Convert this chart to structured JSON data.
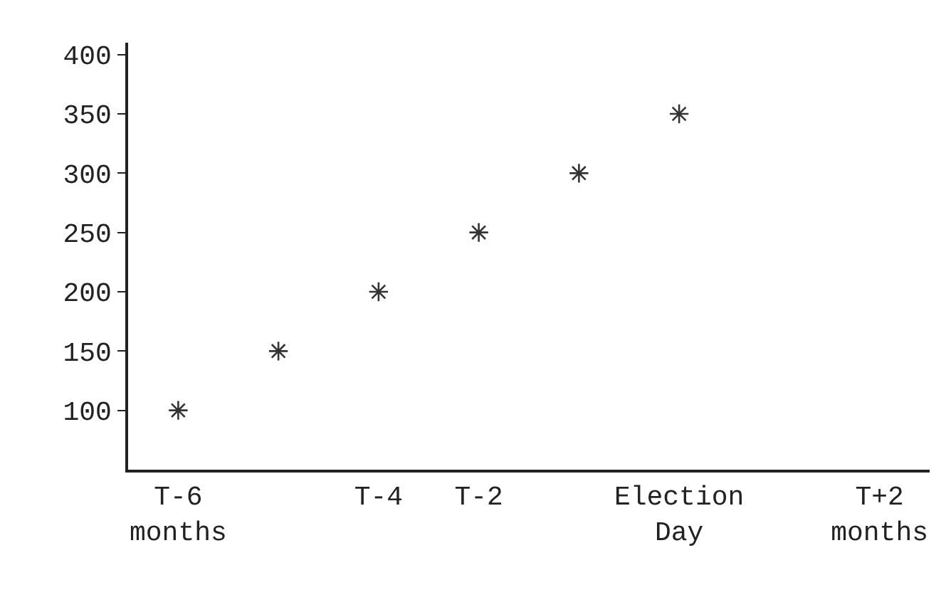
{
  "chart_data": {
    "type": "scatter",
    "categories": [
      "T-6\nmonths",
      null,
      "T-4",
      "T-2",
      null,
      "Election\nDay",
      null,
      "T+2\nmonths"
    ],
    "series": [
      {
        "color": "#333333",
        "values": [
          100,
          150,
          200,
          250,
          300,
          350,
          null,
          null
        ]
      }
    ],
    "ylim": [
      50,
      410
    ],
    "yticks": [
      100,
      150,
      200,
      250,
      300,
      350,
      400
    ],
    "marker": "cross",
    "legend": false
  }
}
